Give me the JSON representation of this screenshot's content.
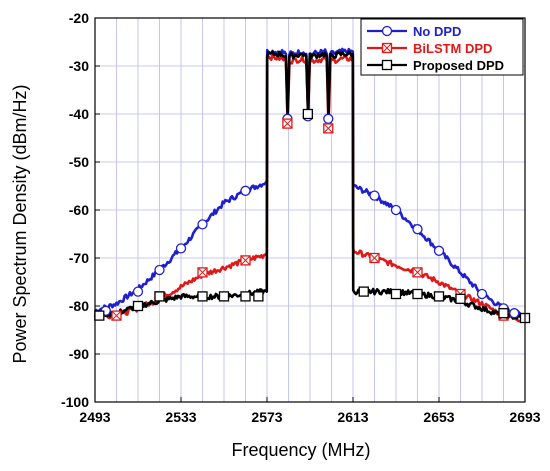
{
  "chart_data": {
    "type": "line",
    "title": "",
    "xlabel": "Frequency (MHz)",
    "ylabel": "Power Spectrum Density (dBm/Hz)",
    "xlim": [
      2493,
      2693
    ],
    "ylim": [
      -100,
      -20
    ],
    "x_ticks": [
      "2493",
      "2533",
      "2573",
      "2613",
      "2653",
      "2693"
    ],
    "y_ticks": [
      "-20",
      "-30",
      "-40",
      "-50",
      "-60",
      "-70",
      "-80",
      "-90",
      "-100"
    ],
    "grid": true,
    "legend_position": "top-right",
    "series": [
      {
        "name": "No DPD",
        "color": "#1f1fd0",
        "marker": "circle",
        "x": [
          2493,
          2503,
          2513,
          2523,
          2533,
          2543,
          2553,
          2563,
          2571,
          2572.9,
          2573.1,
          2580,
          2581.8,
          2582.6,
          2583.4,
          2590,
          2591.3,
          2592.1,
          2592.9,
          2600,
          2600.8,
          2601.6,
          2602.4,
          2608,
          2612.9,
          2613.1,
          2623,
          2633,
          2643,
          2653,
          2663,
          2673,
          2683,
          2693
        ],
        "y": [
          -81,
          -79.5,
          -76.5,
          -72.5,
          -68,
          -63,
          -58.5,
          -56,
          -54.5,
          -54,
          -27,
          -27,
          -27.5,
          -41,
          -27.5,
          -27,
          -27.5,
          -40.5,
          -27.5,
          -27,
          -27.5,
          -41,
          -27.5,
          -27,
          -27,
          -55,
          -57,
          -60,
          -64,
          -68.5,
          -73,
          -77.5,
          -80.5,
          -82
        ]
      },
      {
        "name": "BiLSTM DPD",
        "color": "#e01818",
        "marker": "square-x",
        "x": [
          2493,
          2503,
          2513,
          2523,
          2533,
          2543,
          2553,
          2563,
          2571,
          2572.9,
          2573.1,
          2580,
          2581.8,
          2582.6,
          2583.4,
          2590,
          2591.3,
          2592.1,
          2592.9,
          2600,
          2600.8,
          2601.6,
          2602.4,
          2608,
          2612.9,
          2613.1,
          2623,
          2633,
          2643,
          2653,
          2663,
          2673,
          2683,
          2693
        ],
        "y": [
          -82,
          -82,
          -80.5,
          -78.5,
          -76,
          -73.5,
          -72,
          -70.5,
          -69.5,
          -69,
          -28,
          -28.5,
          -29,
          -42,
          -29,
          -28.5,
          -29,
          -40.5,
          -29,
          -28.5,
          -29,
          -43,
          -29,
          -28.5,
          -28.5,
          -68.5,
          -70,
          -71.5,
          -73,
          -75,
          -77.5,
          -79.5,
          -82,
          -83
        ]
      },
      {
        "name": "Proposed DPD",
        "color": "#000000",
        "marker": "square",
        "x": [
          2493,
          2503,
          2513,
          2523,
          2533,
          2543,
          2553,
          2563,
          2571,
          2572.9,
          2573.1,
          2580,
          2581.8,
          2582.6,
          2583.4,
          2590,
          2591.3,
          2592.1,
          2592.9,
          2600,
          2600.8,
          2601.6,
          2602.4,
          2608,
          2612.9,
          2613.1,
          2623,
          2633,
          2643,
          2653,
          2663,
          2673,
          2683,
          2693
        ],
        "y": [
          -82,
          -81.5,
          -80,
          -79,
          -78,
          -78,
          -78,
          -77.5,
          -77,
          -77,
          -27.5,
          -27.5,
          -28,
          -40,
          -28,
          -27.5,
          -28,
          -40,
          -28,
          -27.5,
          -28,
          -40.5,
          -28,
          -27.5,
          -27.5,
          -77,
          -77,
          -77,
          -77.5,
          -78,
          -79,
          -80.5,
          -82,
          -82.5
        ]
      }
    ],
    "markers": [
      {
        "series": 0,
        "x": [
          2498,
          2513,
          2523,
          2533,
          2543,
          2563,
          2582.5,
          2592,
          2601.5,
          2623,
          2633,
          2643,
          2653,
          2673,
          2683,
          2688
        ],
        "y": [
          -81,
          -77,
          -72.5,
          -68,
          -63,
          -56,
          -41,
          -40.5,
          -41,
          -57,
          -60,
          -64,
          -68.5,
          -77.5,
          -80.5,
          -81.5
        ]
      },
      {
        "series": 1,
        "x": [
          2503,
          2523,
          2543,
          2563,
          2582.5,
          2601.5,
          2623,
          2643,
          2663,
          2683
        ],
        "y": [
          -82,
          -78,
          -73,
          -70.5,
          -42,
          -43,
          -70,
          -73,
          -77.5,
          -82
        ]
      },
      {
        "series": 2,
        "x": [
          2495,
          2513,
          2523,
          2543,
          2553,
          2563,
          2569,
          2592,
          2618,
          2633,
          2643,
          2653,
          2663,
          2683,
          2693
        ],
        "y": [
          -82,
          -80,
          -78,
          -78,
          -78,
          -78,
          -78,
          -40,
          -77,
          -77.5,
          -77.5,
          -78,
          -78.5,
          -81.5,
          -82.5
        ]
      }
    ]
  }
}
